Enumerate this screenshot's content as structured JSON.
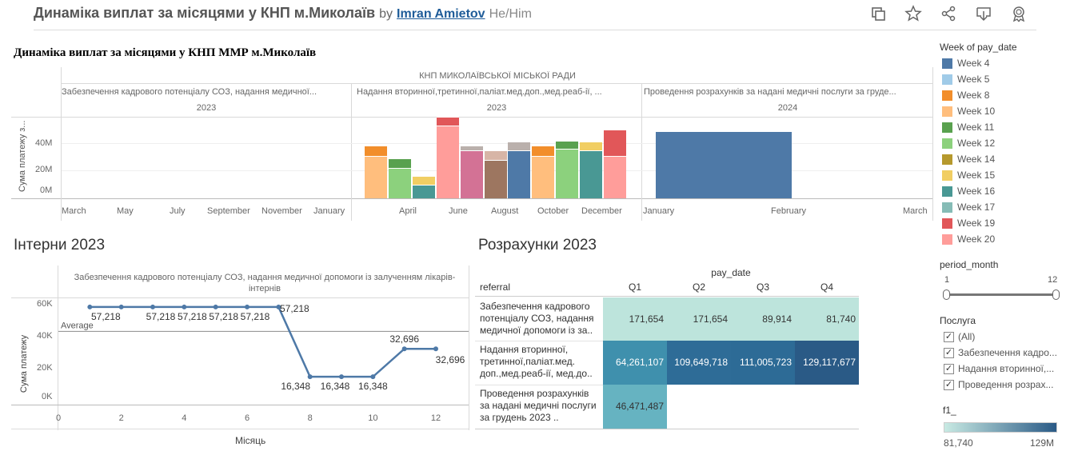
{
  "header": {
    "title": "Динаміка виплат за місяцями у КНП м.Миколаїв",
    "by": "by",
    "author": "Imran Amietov",
    "pronouns": "He/Him",
    "icons": [
      "duplicate-icon",
      "star-icon",
      "share-icon",
      "download-icon",
      "badge-icon"
    ]
  },
  "dashboard_title": "Динаміка виплат за місяцями у КНП ММР м.Миколаїв",
  "top_chart": {
    "group_header": "КНП МИКОЛАЇВСЬКОЇ МІСЬКОЇ РАДИ",
    "ylabel": "Сума платежу з...",
    "panes": [
      {
        "header": "Забезпечення кадрового потенціалу СОЗ, надання медичної...",
        "year": "2023"
      },
      {
        "header": "Надання вторинної,третинної,паліат.мед.доп.,мед.реаб-ії, ...",
        "year": "2023"
      },
      {
        "header": "Проведення розрахунків за надані медичні послуги за груде...",
        "year": "2024"
      }
    ]
  },
  "chart_data": [
    {
      "type": "bar",
      "stacked": true,
      "title": "Динаміка виплат за місяцями у КНП ММР м.Миколаїв",
      "ylabel": "Сума платежу з...",
      "yticks": [
        "0M",
        "20M",
        "40M"
      ],
      "ylim": [
        0,
        60
      ],
      "grid": true,
      "legend": "right",
      "pane1_xticks": [
        "March",
        "May",
        "July",
        "September",
        "November",
        "January"
      ],
      "pane2_xticks": [
        "April",
        "June",
        "August",
        "October",
        "December"
      ],
      "pane3_xticks": [
        "January",
        "February",
        "March"
      ],
      "pane2_bars": [
        {
          "segments": [
            {
              "week": "Week 10",
              "value": 31
            },
            {
              "week": "Week 8",
              "value": 7
            }
          ]
        },
        {
          "segments": [
            {
              "week": "Week 12",
              "value": 22
            },
            {
              "week": "Week 11",
              "value": 7
            }
          ]
        },
        {
          "segments": [
            {
              "week": "Week 16",
              "value": 10
            },
            {
              "week": "Week 15",
              "value": 6
            }
          ]
        },
        {
          "segments": [
            {
              "week": "Week 20",
              "value": 53
            },
            {
              "week": "Week 19",
              "value": 6
            }
          ]
        },
        {
          "segments": [
            {
              "week": "Week 18",
              "value": 35
            },
            {
              "week": "Week 21",
              "value": 3
            }
          ]
        },
        {
          "segments": [
            {
              "week": "Week 22",
              "value": 28
            },
            {
              "week": "Week 23",
              "value": 7
            }
          ]
        },
        {
          "segments": [
            {
              "week": "Week 4",
              "value": 35
            },
            {
              "week": "Week 24",
              "value": 6
            }
          ]
        },
        {
          "segments": [
            {
              "week": "Week 10",
              "value": 31
            },
            {
              "week": "Week 8",
              "value": 7
            }
          ]
        },
        {
          "segments": [
            {
              "week": "Week 12",
              "value": 36
            },
            {
              "week": "Week 11",
              "value": 6
            }
          ]
        },
        {
          "segments": [
            {
              "week": "Week 16",
              "value": 35
            },
            {
              "week": "Week 15",
              "value": 6
            }
          ]
        },
        {
          "segments": [
            {
              "week": "Week 20",
              "value": 31
            },
            {
              "week": "Week 19",
              "value": 19
            }
          ]
        }
      ],
      "pane3_bars": [
        {
          "segments": [
            {
              "week": "Week 4",
              "value": 48
            }
          ]
        }
      ]
    },
    {
      "type": "line",
      "title": "Інтерни 2023",
      "header": "Забезпечення кадрового потенціалу СОЗ, надання медичної допомоги із залученням лікарів-інтернів",
      "xlabel": "Місяць",
      "ylabel": "Сума платежу",
      "xticks": [
        "0",
        "2",
        "4",
        "6",
        "8",
        "10",
        "12"
      ],
      "yticks": [
        "0K",
        "20K",
        "40K",
        "60K"
      ],
      "xlim": [
        0,
        12
      ],
      "ylim": [
        0,
        60000
      ],
      "x": [
        1,
        2,
        3,
        4,
        5,
        6,
        7,
        8,
        9,
        10,
        11,
        12
      ],
      "y": [
        57218,
        57218,
        57218,
        57218,
        57218,
        57218,
        57218,
        16348,
        16348,
        16348,
        32696,
        32696
      ],
      "average_label": "Average",
      "average_value": 42910,
      "point_labels": [
        "57,218",
        "57,218",
        "57,218",
        "57,218",
        "57,218",
        "57,218",
        "57,218",
        "16,348",
        "16,348",
        "16,348",
        "32,696",
        "32,696"
      ]
    },
    {
      "type": "table",
      "title": "Розрахунки 2023",
      "column_group": "pay_date",
      "row_header": "referral",
      "columns": [
        "Q1",
        "Q2",
        "Q3",
        "Q4"
      ],
      "rows": [
        {
          "label": "Забезпечення кадрового потенціалу СОЗ, надання медичної допомоги із за..",
          "values": [
            "171,654",
            "171,654",
            "89,914",
            "81,740"
          ],
          "colors": [
            "#bde4dc",
            "#bde4dc",
            "#bde4dc",
            "#bde4dc"
          ]
        },
        {
          "label": "Надання вторинної, третинної,паліат.мед. доп.,мед.реаб-ії, мед.до..",
          "values": [
            "64,261,107",
            "109,649,718",
            "111,005,723",
            "129,117,677"
          ],
          "colors": [
            "#3f90ad",
            "#2e6c97",
            "#2d6b96",
            "#2a5a86"
          ]
        },
        {
          "label": "Проведення розрахунків за надані медичні послуги за грудень 2023 ..",
          "values": [
            "46,471,487",
            "",
            "",
            ""
          ],
          "colors": [
            "#66b3c1",
            "",
            "",
            ""
          ]
        }
      ]
    }
  ],
  "bottom_left_title": "Інтерни 2023",
  "bottom_right_title": "Розрахунки 2023",
  "legend": {
    "title": "Week of pay_date",
    "items": [
      {
        "label": "Week 4",
        "color": "#4e79a7"
      },
      {
        "label": "Week 5",
        "color": "#a0cbe8"
      },
      {
        "label": "Week 8",
        "color": "#f28e2b"
      },
      {
        "label": "Week 10",
        "color": "#ffbe7d"
      },
      {
        "label": "Week 11",
        "color": "#59a14f"
      },
      {
        "label": "Week 12",
        "color": "#8cd17d"
      },
      {
        "label": "Week 14",
        "color": "#b6992d"
      },
      {
        "label": "Week 15",
        "color": "#f1ce63"
      },
      {
        "label": "Week 16",
        "color": "#499894"
      },
      {
        "label": "Week 17",
        "color": "#86bcb6"
      },
      {
        "label": "Week 19",
        "color": "#e15759"
      },
      {
        "label": "Week 20",
        "color": "#ff9d9a"
      }
    ],
    "extra_colors": {
      "Week 18": "#d37295",
      "Week 21": "#bab0ac",
      "Week 22": "#9d7660",
      "Week 23": "#d7b5a6",
      "Week 24": "#bab0ac"
    }
  },
  "period_filter": {
    "title": "period_month",
    "min": "1",
    "max": "12"
  },
  "service_filter": {
    "title": "Послуга",
    "items": [
      {
        "label": "(All)",
        "checked": true
      },
      {
        "label": "Забезпечення кадро...",
        "checked": true
      },
      {
        "label": "Надання вторинної,...",
        "checked": true
      },
      {
        "label": "Проведення розрах...",
        "checked": true
      }
    ]
  },
  "color_legend": {
    "title": "f1_",
    "min": "81,740",
    "max": "129M",
    "color_from": "#c8eae3",
    "color_to": "#2a5a86"
  }
}
